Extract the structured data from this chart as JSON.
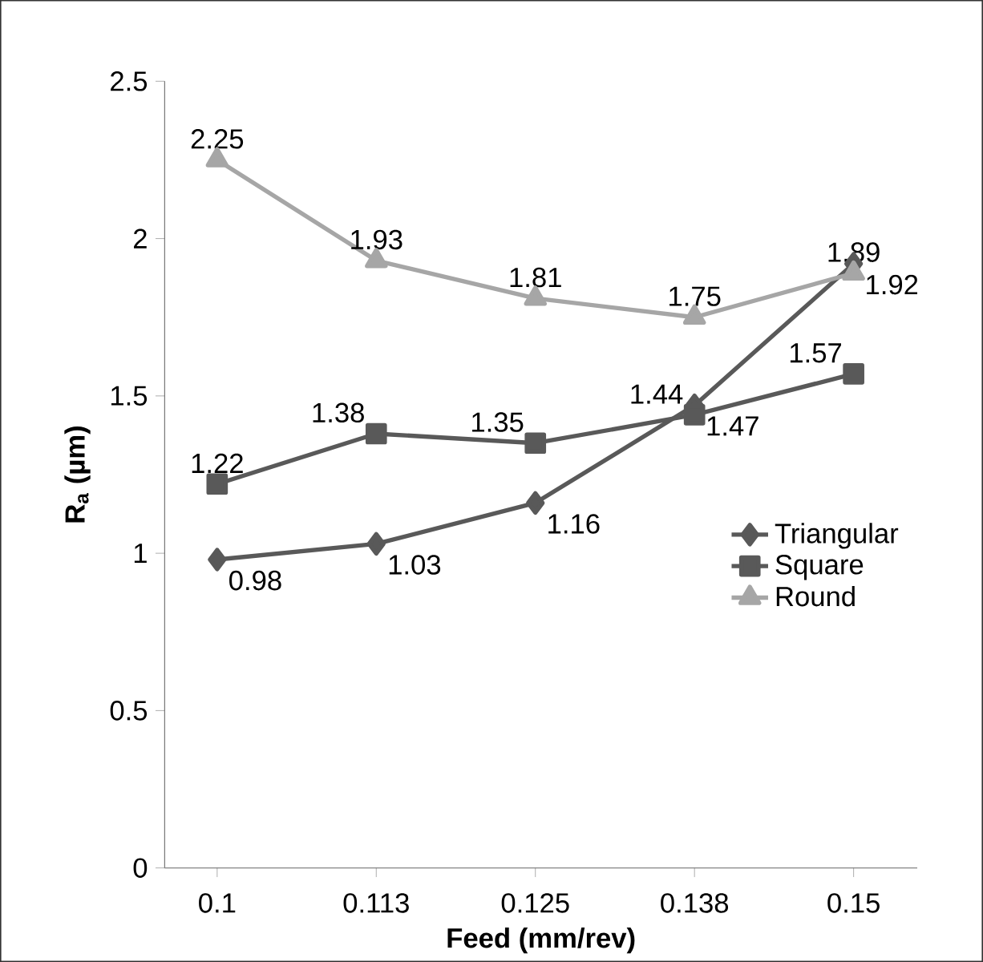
{
  "chart_data": {
    "type": "line",
    "xlabel": "Feed (mm/rev)",
    "ylabel": "**R$_{a}$ (µm)**",
    "categories": [
      "0.1",
      "0.113",
      "0.125",
      "0.138",
      "0.15"
    ],
    "series": [
      {
        "name": "Triangular",
        "color": "#595959",
        "marker": "diamond",
        "values": [
          0.98,
          1.03,
          1.16,
          1.47,
          1.92
        ]
      },
      {
        "name": "Square",
        "color": "#595959",
        "marker": "square",
        "values": [
          1.22,
          1.38,
          1.35,
          1.44,
          1.57
        ]
      },
      {
        "name": "Round",
        "color": "#a6a6a6",
        "marker": "triangle",
        "values": [
          2.25,
          1.93,
          1.81,
          1.75,
          1.89
        ]
      }
    ],
    "ylim": [
      0,
      2.5
    ],
    "yticks": [
      0,
      0.5,
      1,
      1.5,
      2,
      2.5
    ],
    "data_labels": true,
    "legend": "right",
    "grid": false,
    "line_style": "solid"
  }
}
